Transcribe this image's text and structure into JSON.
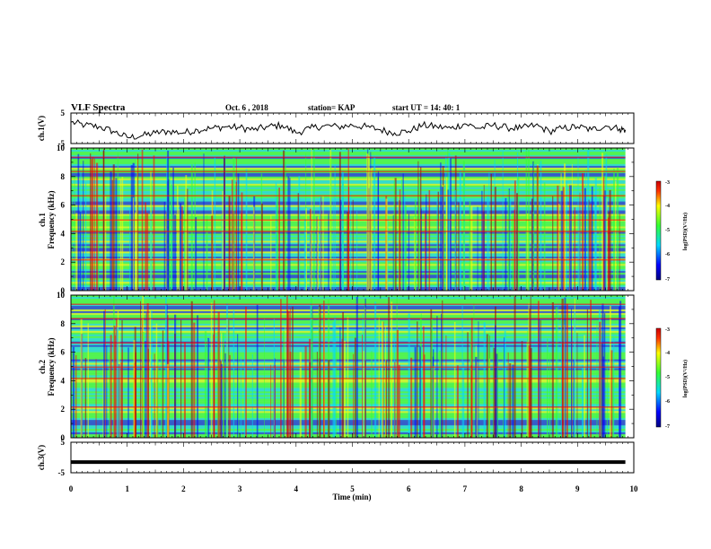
{
  "header": {
    "title": "VLF Spectra",
    "date": "Oct. 6 , 2018",
    "station": "station= KAP",
    "start": "start UT = 14: 40: 1"
  },
  "chart_data": [
    {
      "type": "line",
      "name": "ch1-waveform",
      "ylabel": "ch.1(V)",
      "ylim": [
        -5,
        5
      ],
      "yticks": [
        "5",
        "-5"
      ],
      "xlim": [
        0,
        10
      ],
      "description_of_values": "noisy signal around 0 V",
      "x": [
        0,
        0.25,
        0.5,
        0.75,
        1.0,
        1.25,
        1.5,
        1.75,
        2.0,
        2.25,
        2.5,
        2.75,
        3.0,
        3.25,
        3.5,
        3.75,
        4.0,
        4.25,
        4.5,
        4.75,
        5.0,
        5.25,
        5.5,
        5.75,
        6.0,
        6.25,
        6.5,
        6.75,
        7.0,
        7.25,
        7.5,
        7.75,
        8.0,
        8.25,
        8.5,
        8.75,
        9.0,
        9.25,
        9.5,
        9.75,
        9.85
      ],
      "y": [
        2,
        1,
        0.5,
        -1,
        -3,
        -2.5,
        -1.5,
        -1,
        -1.5,
        -0.5,
        0,
        0.5,
        0.2,
        -0.5,
        0.5,
        1,
        -1.5,
        0,
        0.8,
        0.5,
        1,
        0.5,
        -0.5,
        -1.5,
        -1,
        1,
        0.5,
        0,
        1.5,
        0,
        1,
        0.2,
        0,
        1,
        -1,
        0,
        0.5,
        -0.5,
        0.8,
        -0.2,
        -0.5
      ]
    },
    {
      "type": "heatmap",
      "name": "ch1-spectrogram",
      "ylabel": "ch.1",
      "ylabel2": "Frequency (kHz)",
      "xlim": [
        0,
        10
      ],
      "ylim": [
        0,
        10
      ],
      "yticks": [
        "0",
        "2",
        "4",
        "6",
        "8",
        "10"
      ],
      "colorbar": {
        "label": "log(PSD)(V²/Hz)",
        "range": [
          -7,
          -3
        ],
        "ticks": [
          "-3",
          "-4",
          "-5",
          "-6",
          "-7"
        ]
      }
    },
    {
      "type": "heatmap",
      "name": "ch2-spectrogram",
      "ylabel": "ch.2",
      "ylabel2": "Frequency (kHz)",
      "xlim": [
        0,
        10
      ],
      "ylim": [
        0,
        10
      ],
      "yticks": [
        "0",
        "2",
        "4",
        "6",
        "8",
        "10"
      ],
      "colorbar": {
        "label": "log(PSD)(V²/Hz)",
        "range": [
          -7,
          -3
        ],
        "ticks": [
          "-3",
          "-4",
          "-5",
          "-6",
          "-7"
        ]
      }
    },
    {
      "type": "line",
      "name": "ch3-waveform",
      "ylabel": "ch.3(V)",
      "ylim": [
        -5,
        5
      ],
      "yticks": [
        "5",
        "-5"
      ],
      "xlim": [
        0,
        10
      ],
      "x": [
        0,
        9.85
      ],
      "y": [
        -1.5,
        -1.5
      ]
    }
  ],
  "xaxis": {
    "label": "Time (min)",
    "ticks": [
      "0",
      "1",
      "2",
      "3",
      "4",
      "5",
      "6",
      "7",
      "8",
      "9",
      "10"
    ]
  },
  "colors": {
    "blue": "#0000ff",
    "cyan": "#00d8ff",
    "green": "#33ff33",
    "yellow": "#ffff00",
    "red": "#ff0000",
    "darkred": "#990000"
  }
}
